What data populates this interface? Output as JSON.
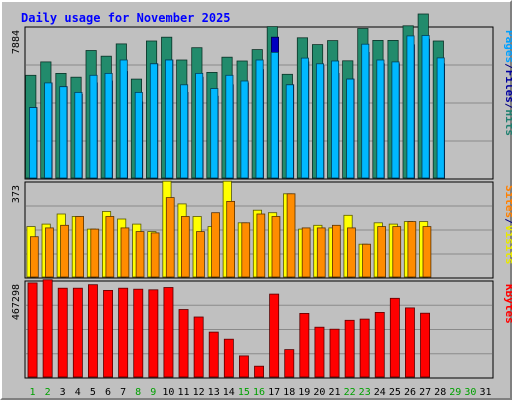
{
  "chart_data": {
    "type": "bar",
    "title": "Daily usage for November 2025",
    "categories": [
      "1",
      "2",
      "3",
      "4",
      "5",
      "6",
      "7",
      "8",
      "9",
      "10",
      "11",
      "12",
      "13",
      "14",
      "15",
      "16",
      "17",
      "18",
      "19",
      "20",
      "21",
      "22",
      "23",
      "24",
      "25",
      "26",
      "27",
      "28",
      "29",
      "30",
      "31"
    ],
    "weekend_days": [
      1,
      2,
      8,
      9,
      15,
      16,
      22,
      23,
      29,
      30
    ],
    "top_panel": {
      "ymax": 7884,
      "ymax_label": "7884",
      "legend": [
        {
          "label": "Pages",
          "color": "#00a0ff"
        },
        {
          "label": "/",
          "color": "#000080"
        },
        {
          "label": "Files",
          "color": "#0000a0"
        },
        {
          "label": "/",
          "color": "#000080"
        },
        {
          "label": "Hits",
          "color": "#208070"
        }
      ],
      "series": [
        {
          "name": "Hits",
          "color": "#228b6c",
          "values": [
            5400,
            6100,
            5500,
            5300,
            6700,
            6400,
            7050,
            5200,
            7200,
            7400,
            6200,
            6850,
            5550,
            6350,
            6150,
            6750,
            7960,
            5450,
            7370,
            7010,
            7220,
            6160,
            7860,
            7230,
            7230,
            8000,
            8620,
            7200,
            0,
            0,
            0
          ]
        },
        {
          "name": "Files",
          "color": "#0000c0",
          "values": [
            3700,
            5000,
            4800,
            4400,
            5000,
            5100,
            5600,
            4000,
            6000,
            6200,
            4500,
            5300,
            4300,
            4900,
            5000,
            5700,
            7400,
            4900,
            6100,
            5900,
            5500,
            5200,
            6600,
            6000,
            6000,
            7000,
            7300,
            6000,
            0,
            0,
            0
          ]
        },
        {
          "name": "Pages",
          "color": "#00b8ff",
          "values": [
            3700,
            5000,
            4800,
            4500,
            5400,
            5500,
            6200,
            4500,
            6000,
            6200,
            4900,
            5500,
            4700,
            5400,
            5100,
            6200,
            6600,
            4900,
            6300,
            6000,
            6150,
            5200,
            7030,
            6200,
            6100,
            7470,
            7490,
            6310,
            0,
            0,
            0
          ]
        }
      ]
    },
    "middle_panel": {
      "ymax": 373,
      "ymax_label": "373",
      "legend": [
        {
          "label": "Sites",
          "color": "#ff8000"
        },
        {
          "label": "/",
          "color": "#000080"
        },
        {
          "label": "Visits",
          "color": "#e8e800"
        }
      ],
      "series": [
        {
          "name": "Visits",
          "color": "#ffff00",
          "values": [
            200,
            210,
            250,
            240,
            190,
            260,
            230,
            210,
            180,
            380,
            290,
            240,
            200,
            380,
            215,
            265,
            255,
            330,
            190,
            205,
            195,
            245,
            130,
            215,
            210,
            220,
            220,
            0,
            0,
            0,
            0
          ]
        },
        {
          "name": "Sites",
          "color": "#ff8c00",
          "values": [
            160,
            195,
            205,
            240,
            190,
            240,
            195,
            180,
            175,
            315,
            240,
            180,
            255,
            300,
            215,
            250,
            240,
            330,
            195,
            195,
            205,
            195,
            130,
            200,
            200,
            220,
            200,
            0,
            0,
            0,
            0
          ]
        }
      ]
    },
    "bottom_panel": {
      "ymax": 467298,
      "ymax_label": "467298",
      "legend": [
        {
          "label": "KBytes",
          "color": "#ff0000"
        }
      ],
      "series": [
        {
          "name": "KBytes",
          "color": "#ff0000",
          "values": [
            463000,
            478000,
            437000,
            437000,
            454000,
            426000,
            437000,
            432000,
            429000,
            440000,
            332000,
            295000,
            221000,
            186000,
            104000,
            53000,
            408000,
            135000,
            313000,
            245000,
            235000,
            279000,
            285000,
            318000,
            387000,
            340000,
            314000,
            0,
            0,
            0,
            0
          ]
        }
      ]
    }
  }
}
